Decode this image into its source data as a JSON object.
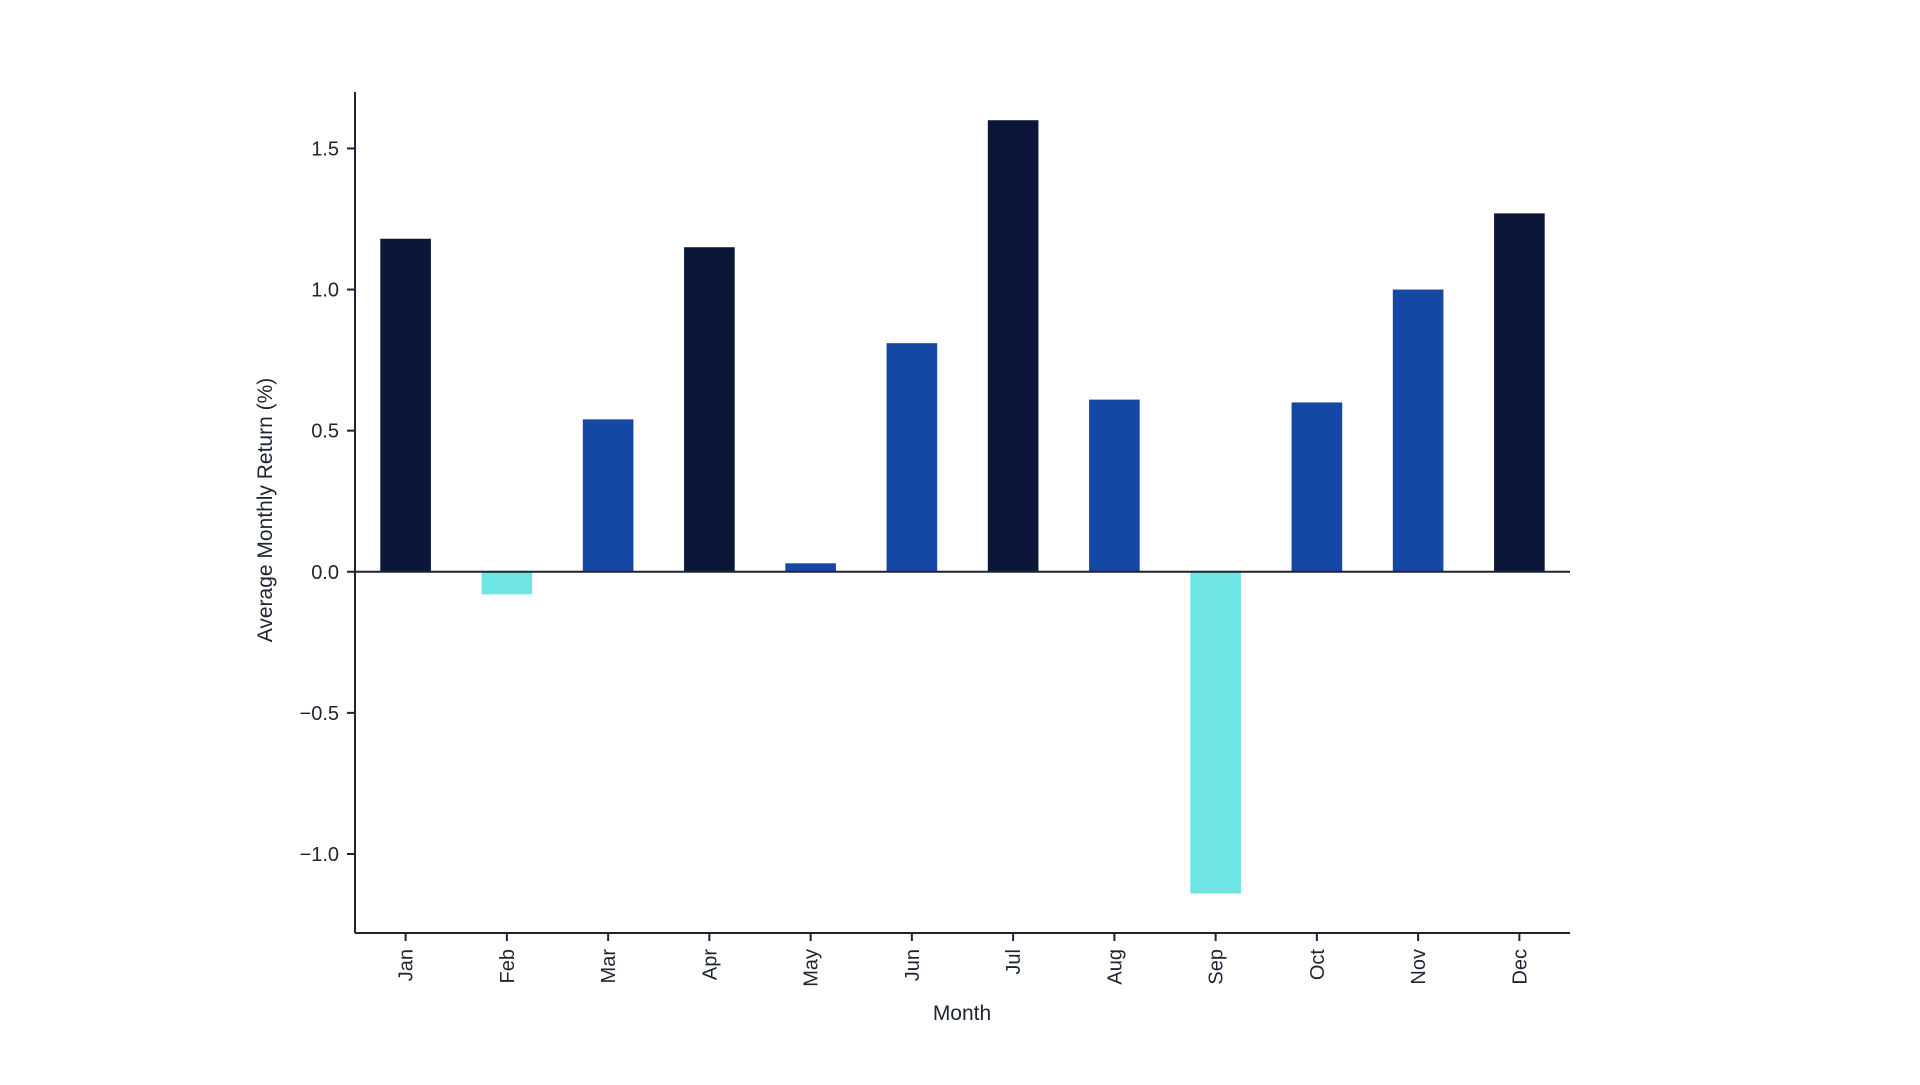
{
  "chart_data": {
    "type": "bar",
    "categories": [
      "Jan",
      "Feb",
      "Mar",
      "Apr",
      "May",
      "Jun",
      "Jul",
      "Aug",
      "Sep",
      "Oct",
      "Nov",
      "Dec"
    ],
    "values": [
      1.18,
      -0.08,
      0.54,
      1.15,
      0.03,
      0.81,
      1.6,
      0.61,
      -1.14,
      0.6,
      1.0,
      1.27
    ],
    "bar_colors": [
      "#0b1638",
      "#6ee6e6",
      "#1547a4",
      "#0b1638",
      "#1547a4",
      "#1547a4",
      "#0b1638",
      "#1547a4",
      "#6ee6e6",
      "#1547a4",
      "#1547a4",
      "#0b1638"
    ],
    "xlabel": "Month",
    "ylabel": "Average Monthly Return (%)",
    "ylim": [
      -1.28,
      1.7
    ],
    "yticks": [
      -1.0,
      -0.5,
      0.0,
      0.5,
      1.0,
      1.5
    ],
    "ytick_labels": [
      "−1.0",
      "−0.5",
      "0.0",
      "0.5",
      "1.0",
      "1.5"
    ],
    "grid": false,
    "zero_line": true
  }
}
